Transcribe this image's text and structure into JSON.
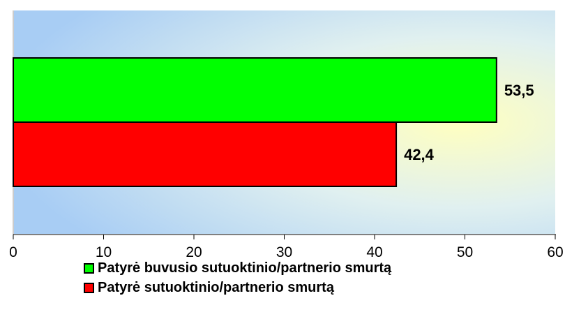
{
  "chart_data": {
    "type": "bar",
    "orientation": "horizontal",
    "xlim": [
      0,
      60
    ],
    "xticks": [
      0,
      10,
      20,
      30,
      40,
      50,
      60
    ],
    "series": [
      {
        "name": "Patyrė buvusio sutuoktinio/partnerio smurtą",
        "value": 53.5,
        "label": "53,5",
        "color": "#00ff00"
      },
      {
        "name": "Patyrė sutuoktinio/partnerio smurtą",
        "value": 42.4,
        "label": "42,4",
        "color": "#ff0000"
      }
    ],
    "legend_position": "bottom",
    "grid": false,
    "background": "gradient"
  }
}
